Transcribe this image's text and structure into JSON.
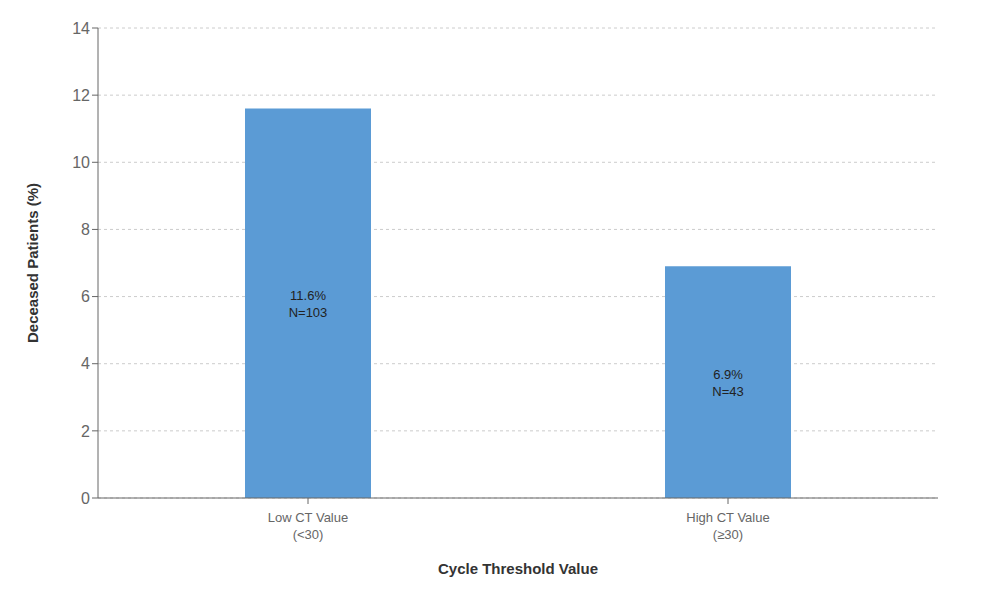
{
  "chart_data": {
    "type": "bar",
    "categories": [
      "Low CT Value\n(<30)",
      "High CT Value\n(≥30)"
    ],
    "values": [
      11.6,
      6.9
    ],
    "value_labels": [
      "11.6%\nN=103",
      "6.9%\nN=43"
    ],
    "color": "#5B9BD5",
    "xlabel": "Cycle Threshold Value",
    "ylabel": "Deceased Patients (%)",
    "ylim": [
      0,
      14
    ],
    "yticks": [
      0,
      2,
      4,
      6,
      8,
      10,
      12,
      14
    ],
    "grid": true
  }
}
